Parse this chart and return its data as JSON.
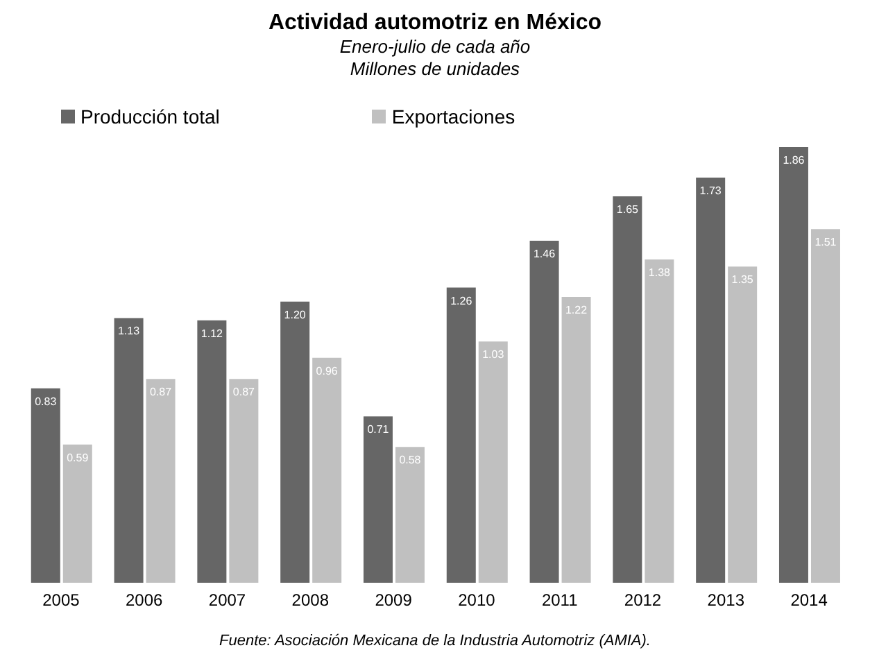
{
  "chart_data": {
    "type": "bar",
    "title": "Actividad automotriz en México",
    "subtitle": "Enero-julio de cada año\nMillones de unidades",
    "categories": [
      "2005",
      "2006",
      "2007",
      "2008",
      "2009",
      "2010",
      "2011",
      "2012",
      "2013",
      "2014"
    ],
    "series": [
      {
        "name": "Producción total",
        "color": "#666666",
        "values": [
          0.83,
          1.13,
          1.12,
          1.2,
          0.71,
          1.26,
          1.46,
          1.65,
          1.73,
          1.86
        ],
        "value_labels": [
          "0.83",
          "1.13",
          "1.12",
          "1.20",
          "0.71",
          "1.26",
          "1.46",
          "1.65",
          "1.73",
          "1.86"
        ]
      },
      {
        "name": "Exportaciones",
        "color": "#c0c0c0",
        "values": [
          0.59,
          0.87,
          0.87,
          0.96,
          0.58,
          1.03,
          1.22,
          1.38,
          1.35,
          1.51
        ],
        "value_labels": [
          "0.59",
          "0.87",
          "0.87",
          "0.96",
          "0.58",
          "1.03",
          "1.22",
          "1.38",
          "1.35",
          "1.51"
        ]
      }
    ],
    "legend": "top left",
    "annotations": [
      "Fuente: Asociación Mexicana de la Industria Automotriz (AMIA)."
    ]
  }
}
